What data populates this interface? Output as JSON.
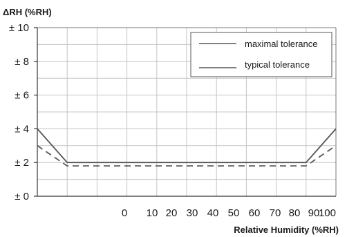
{
  "chart_data": {
    "type": "line",
    "ylabel": "ΔRH (%RH)",
    "xlabel": "Relative Humidity (%RH)",
    "xlim": [
      0,
      100
    ],
    "ylim": [
      0,
      10
    ],
    "grid": true,
    "legend_position": "top-right",
    "y_ticks": [
      {
        "value": 0,
        "label": "± 0"
      },
      {
        "value": 2,
        "label": "± 2"
      },
      {
        "value": 4,
        "label": "± 4"
      },
      {
        "value": 6,
        "label": "± 6"
      },
      {
        "value": 8,
        "label": "± 8"
      },
      {
        "value": 10,
        "label": "± 10"
      }
    ],
    "x_ticks": [
      {
        "value": 30,
        "label": "0"
      },
      {
        "value": 40,
        "label": "10"
      },
      {
        "value": 50,
        "label": "20"
      },
      {
        "value": 60,
        "label": "30"
      },
      {
        "value": 70,
        "label": "40"
      },
      {
        "value": 80,
        "label": "50"
      },
      {
        "value": 90,
        "label": "60"
      },
      {
        "value": 100,
        "label": "70"
      }
    ],
    "x_ticks_right": [
      {
        "value": 85,
        "label": "80"
      },
      {
        "value": 90,
        "label": "90"
      },
      {
        "value": 100,
        "label": "100"
      }
    ],
    "series": [
      {
        "name": "maximal tolerance",
        "style": "solid",
        "color": "#555555",
        "x": [
          0,
          10,
          90,
          100
        ],
        "y": [
          4,
          2,
          2,
          4
        ]
      },
      {
        "name": "typical tolerance",
        "style": "dashed",
        "color": "#555555",
        "x": [
          0,
          10,
          90,
          100
        ],
        "y": [
          3,
          1.8,
          1.8,
          3
        ]
      }
    ]
  }
}
